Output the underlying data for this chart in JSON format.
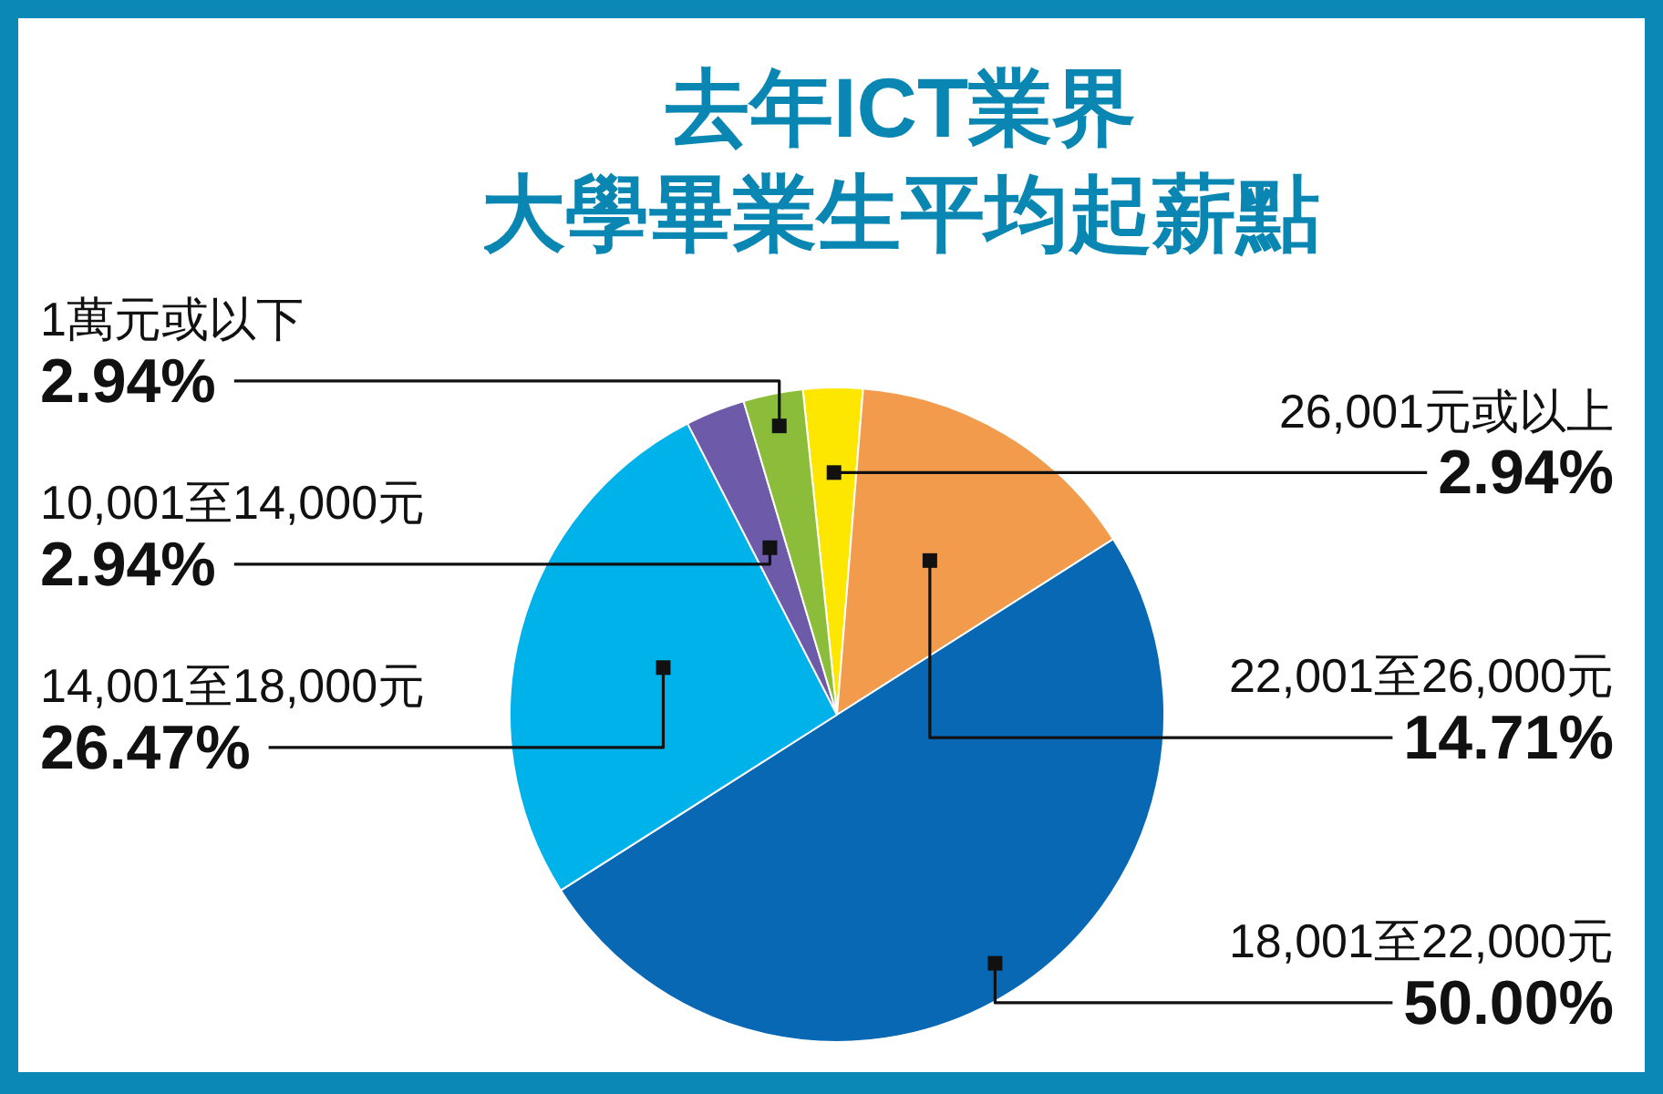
{
  "chart_data": {
    "type": "pie",
    "title": "去年ICT業界",
    "subtitle": "大學畢業生平均起薪點",
    "categories": [
      "26,001元或以上",
      "22,001至26,000元",
      "18,001至22,000元",
      "14,001至18,000元",
      "10,001至14,000元",
      "1萬元或以下"
    ],
    "values": [
      2.94,
      14.71,
      50.0,
      26.47,
      2.94,
      2.94
    ],
    "colors": [
      "#fde700",
      "#f29b4c",
      "#0868b3",
      "#00b2ea",
      "#6d5aa8",
      "#8bbd3a"
    ],
    "value_labels": [
      "2.94%",
      "14.71%",
      "50.00%",
      "26.47%",
      "2.94%",
      "2.94%"
    ]
  }
}
